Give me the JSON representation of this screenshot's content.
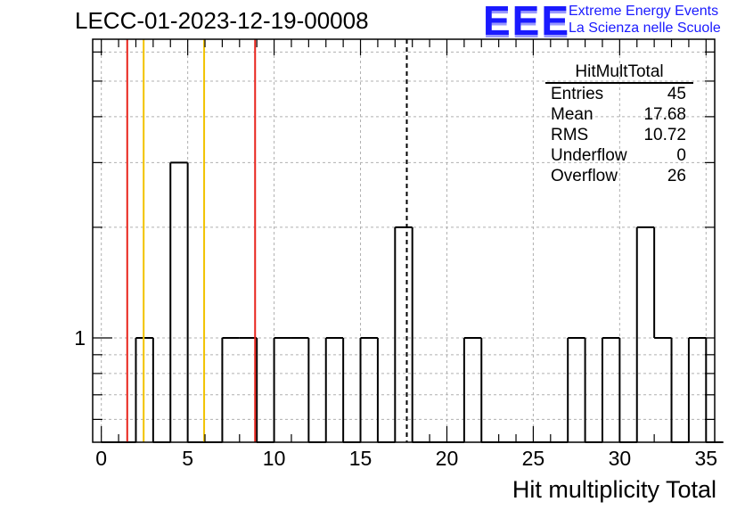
{
  "title": "LECC-01-2023-12-19-00008",
  "logo": {
    "mark": "EEE",
    "line1": "Extreme Energy Events",
    "line2": "La Scienza nelle Scuole"
  },
  "stats_box": {
    "title": "HitMultTotal",
    "rows": [
      {
        "label": "Entries",
        "value": "45"
      },
      {
        "label": "Mean",
        "value": "17.68"
      },
      {
        "label": "RMS",
        "value": "10.72"
      },
      {
        "label": "Underflow",
        "value": "0"
      },
      {
        "label": "Overflow",
        "value": "26"
      }
    ]
  },
  "chart_data": {
    "type": "bar",
    "histogram": "step",
    "x_bin_width": 1,
    "xlim": [
      -0.5,
      35.5
    ],
    "ylim": [
      0.52,
      6.5
    ],
    "y_scale": "log",
    "x_ticks": [
      0,
      5,
      10,
      15,
      20,
      25,
      30,
      35
    ],
    "y_tick_labels": [
      {
        "value": 1,
        "label": "1"
      }
    ],
    "xlabel": "Hit multiplicity Total",
    "ylabel": "",
    "grid": true,
    "bins": [
      {
        "x": 2.5,
        "count": 1
      },
      {
        "x": 4.5,
        "count": 3
      },
      {
        "x": 7.5,
        "count": 1
      },
      {
        "x": 8.5,
        "count": 1
      },
      {
        "x": 10.5,
        "count": 1
      },
      {
        "x": 11.5,
        "count": 1
      },
      {
        "x": 13.5,
        "count": 1
      },
      {
        "x": 15.5,
        "count": 1
      },
      {
        "x": 17.5,
        "count": 2
      },
      {
        "x": 21.5,
        "count": 1
      },
      {
        "x": 27.5,
        "count": 1
      },
      {
        "x": 29.5,
        "count": 1
      },
      {
        "x": 31.5,
        "count": 2
      },
      {
        "x": 32.5,
        "count": 1
      },
      {
        "x": 34.5,
        "count": 1
      }
    ],
    "vertical_lines": [
      {
        "x": 1.5,
        "color": "#e8241c",
        "style": "solid"
      },
      {
        "x": 2.45,
        "color": "#f2c200",
        "style": "solid"
      },
      {
        "x": 5.95,
        "color": "#f2c200",
        "style": "solid"
      },
      {
        "x": 8.9,
        "color": "#e8241c",
        "style": "solid"
      },
      {
        "x": 17.68,
        "color": "#000000",
        "style": "dashed"
      }
    ]
  }
}
